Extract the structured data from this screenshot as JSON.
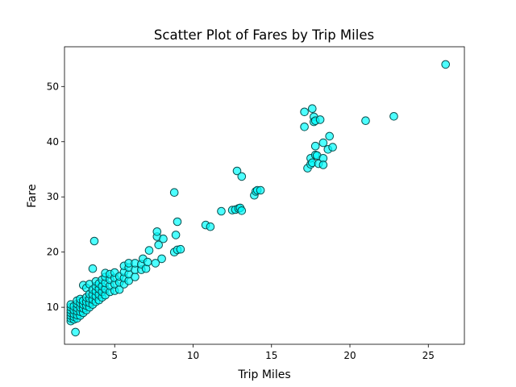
{
  "chart_data": {
    "type": "scatter",
    "title": "Scatter Plot of Fares by Trip Miles",
    "xlabel": "Trip Miles",
    "ylabel": "Fare",
    "xlim": [
      1.8,
      27.3
    ],
    "ylim": [
      3.3,
      57.2
    ],
    "xticks": [
      5,
      10,
      15,
      20,
      25
    ],
    "yticks": [
      10,
      20,
      30,
      40,
      50
    ],
    "grid": false,
    "marker_color": "#00FFFF",
    "marker_edge_color": "#0b4d4d",
    "points": [
      [
        2.2,
        7.5
      ],
      [
        2.2,
        8.0
      ],
      [
        2.2,
        8.5
      ],
      [
        2.2,
        9.0
      ],
      [
        2.2,
        9.5
      ],
      [
        2.2,
        10.0
      ],
      [
        2.2,
        10.5
      ],
      [
        2.4,
        7.8
      ],
      [
        2.4,
        8.3
      ],
      [
        2.4,
        8.8
      ],
      [
        2.4,
        9.5
      ],
      [
        2.4,
        10.2
      ],
      [
        2.6,
        8.0
      ],
      [
        2.6,
        8.6
      ],
      [
        2.6,
        9.3
      ],
      [
        2.6,
        9.9
      ],
      [
        2.6,
        10.6
      ],
      [
        2.6,
        11.2
      ],
      [
        2.5,
        5.5
      ],
      [
        2.8,
        8.5
      ],
      [
        2.8,
        9.2
      ],
      [
        2.8,
        10.0
      ],
      [
        2.8,
        10.8
      ],
      [
        2.8,
        11.5
      ],
      [
        3.0,
        9.0
      ],
      [
        3.0,
        9.8
      ],
      [
        3.0,
        10.5
      ],
      [
        3.0,
        11.2
      ],
      [
        3.0,
        14.0
      ],
      [
        3.2,
        9.5
      ],
      [
        3.2,
        10.3
      ],
      [
        3.2,
        11.0
      ],
      [
        3.2,
        11.8
      ],
      [
        3.2,
        13.5
      ],
      [
        3.4,
        10.0
      ],
      [
        3.4,
        10.8
      ],
      [
        3.4,
        11.6
      ],
      [
        3.4,
        12.4
      ],
      [
        3.4,
        14.2
      ],
      [
        3.6,
        10.5
      ],
      [
        3.6,
        11.4
      ],
      [
        3.6,
        12.3
      ],
      [
        3.6,
        13.2
      ],
      [
        3.6,
        17.0
      ],
      [
        3.7,
        22.0
      ],
      [
        3.8,
        11.0
      ],
      [
        3.8,
        12.0
      ],
      [
        3.8,
        12.9
      ],
      [
        3.8,
        13.8
      ],
      [
        3.8,
        14.7
      ],
      [
        4.0,
        11.3
      ],
      [
        4.0,
        12.3
      ],
      [
        4.0,
        13.3
      ],
      [
        4.0,
        14.3
      ],
      [
        4.2,
        11.8
      ],
      [
        4.2,
        12.8
      ],
      [
        4.2,
        13.8
      ],
      [
        4.2,
        15.0
      ],
      [
        4.4,
        12.2
      ],
      [
        4.4,
        13.3
      ],
      [
        4.4,
        14.4
      ],
      [
        4.4,
        15.5
      ],
      [
        4.4,
        16.2
      ],
      [
        4.7,
        12.8
      ],
      [
        4.7,
        13.9
      ],
      [
        4.7,
        15.0
      ],
      [
        4.7,
        16.0
      ],
      [
        5.0,
        13.0
      ],
      [
        5.0,
        14.2
      ],
      [
        5.0,
        15.3
      ],
      [
        5.0,
        16.3
      ],
      [
        5.3,
        13.2
      ],
      [
        5.3,
        14.5
      ],
      [
        5.3,
        15.6
      ],
      [
        5.6,
        14.2
      ],
      [
        5.6,
        15.3
      ],
      [
        5.6,
        16.4
      ],
      [
        5.6,
        17.5
      ],
      [
        5.9,
        14.8
      ],
      [
        5.9,
        16.0
      ],
      [
        5.9,
        17.2
      ],
      [
        5.9,
        18.0
      ],
      [
        6.3,
        15.5
      ],
      [
        6.3,
        16.8
      ],
      [
        6.3,
        18.0
      ],
      [
        6.7,
        16.8
      ],
      [
        6.7,
        17.8
      ],
      [
        6.8,
        18.8
      ],
      [
        7.0,
        17.0
      ],
      [
        7.1,
        18.2
      ],
      [
        7.2,
        20.3
      ],
      [
        7.6,
        18.0
      ],
      [
        7.7,
        22.8
      ],
      [
        7.7,
        23.7
      ],
      [
        7.8,
        21.3
      ],
      [
        8.0,
        18.8
      ],
      [
        8.1,
        22.4
      ],
      [
        8.8,
        20.0
      ],
      [
        8.8,
        30.8
      ],
      [
        8.9,
        23.1
      ],
      [
        9.0,
        25.5
      ],
      [
        9.0,
        20.4
      ],
      [
        9.2,
        20.5
      ],
      [
        10.8,
        24.9
      ],
      [
        11.1,
        24.6
      ],
      [
        11.8,
        27.4
      ],
      [
        12.5,
        27.6
      ],
      [
        12.7,
        27.7
      ],
      [
        12.8,
        34.7
      ],
      [
        12.9,
        27.9
      ],
      [
        13.0,
        28.0
      ],
      [
        13.1,
        33.7
      ],
      [
        13.1,
        27.5
      ],
      [
        13.9,
        30.3
      ],
      [
        14.0,
        31.0
      ],
      [
        14.1,
        31.2
      ],
      [
        14.3,
        31.2
      ],
      [
        17.1,
        45.4
      ],
      [
        17.1,
        42.7
      ],
      [
        17.3,
        35.2
      ],
      [
        17.5,
        35.9
      ],
      [
        17.5,
        37.0
      ],
      [
        17.6,
        46.0
      ],
      [
        17.6,
        36.2
      ],
      [
        17.7,
        44.5
      ],
      [
        17.7,
        43.6
      ],
      [
        17.8,
        43.8
      ],
      [
        17.8,
        39.2
      ],
      [
        17.8,
        37.6
      ],
      [
        17.9,
        37.5
      ],
      [
        18.0,
        36.0
      ],
      [
        18.1,
        44.0
      ],
      [
        18.3,
        39.8
      ],
      [
        18.3,
        37.0
      ],
      [
        18.3,
        35.8
      ],
      [
        18.6,
        38.6
      ],
      [
        18.7,
        41.0
      ],
      [
        18.9,
        39.0
      ],
      [
        21.0,
        43.8
      ],
      [
        22.8,
        44.6
      ],
      [
        26.1,
        54.0
      ]
    ]
  }
}
